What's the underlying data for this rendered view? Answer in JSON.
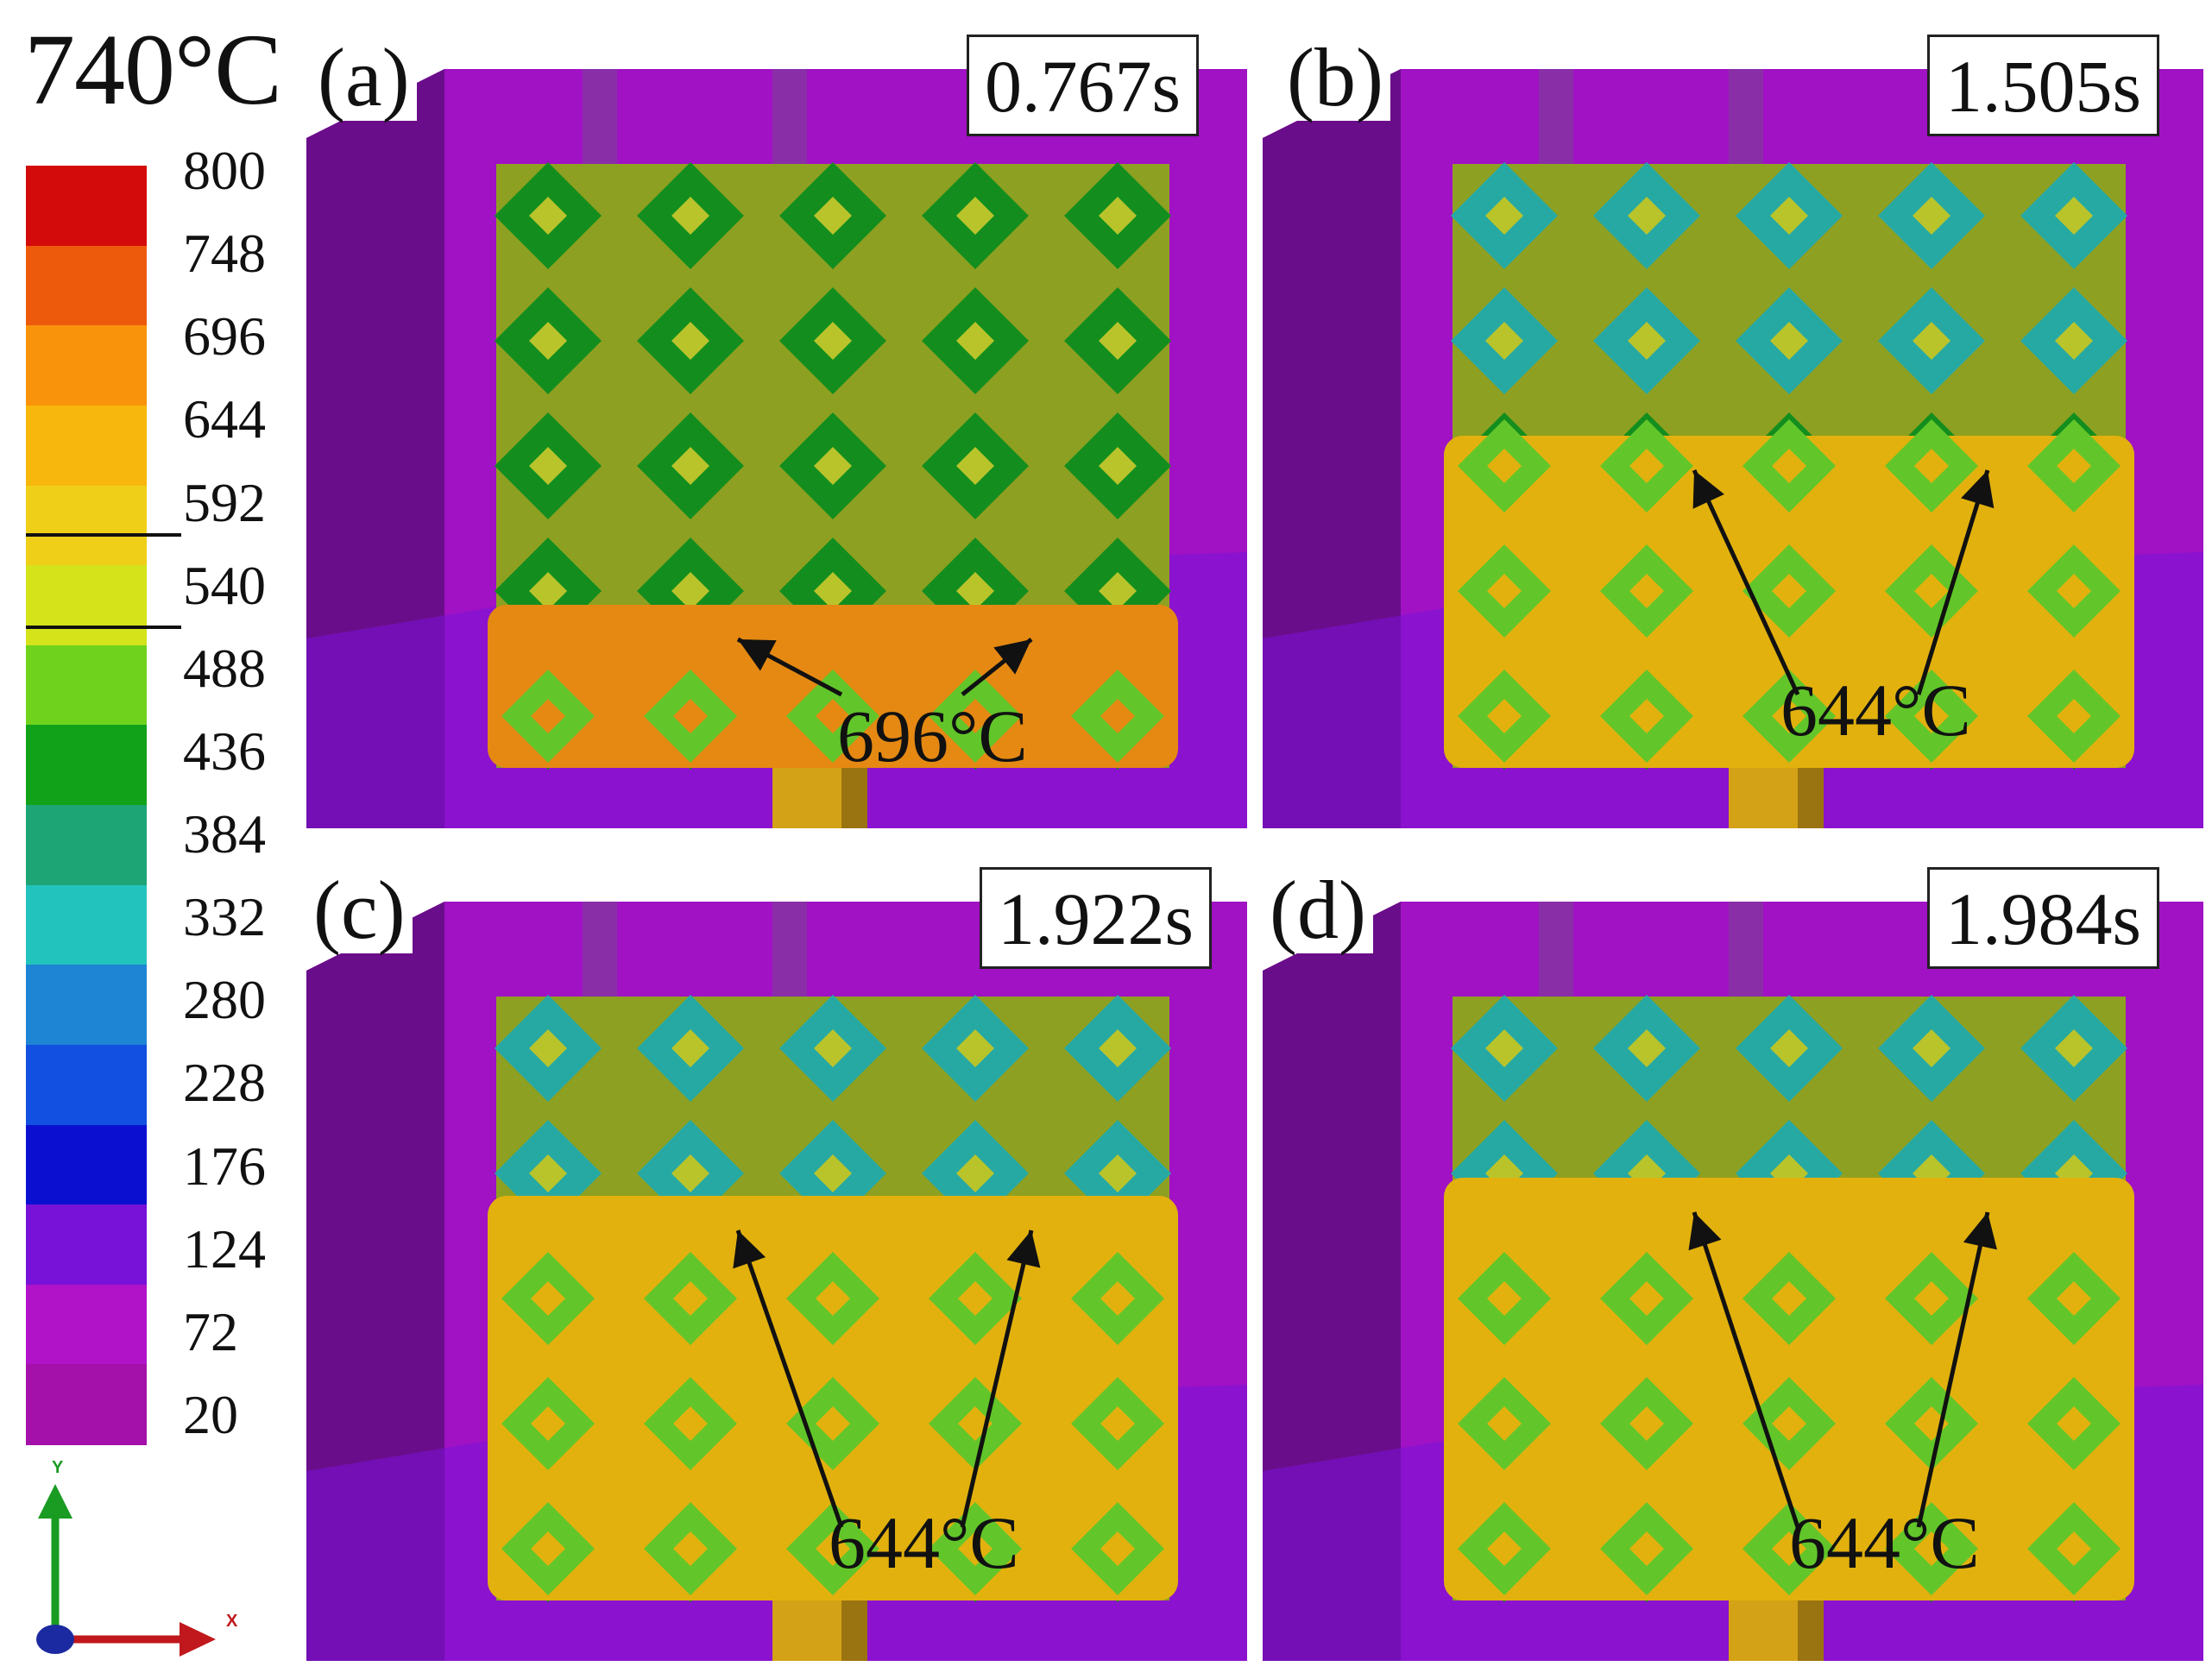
{
  "scale": {
    "title": "740°C",
    "ticks": [
      "800",
      "748",
      "696",
      "644",
      "592",
      "540",
      "488",
      "436",
      "384",
      "332",
      "280",
      "228",
      "176",
      "124",
      "72",
      "20"
    ],
    "colors": [
      "#d40b0b",
      "#ee5a0c",
      "#f9930b",
      "#f8b70c",
      "#f0cf19",
      "#d4e31a",
      "#6fd31e",
      "#12a21a",
      "#1da575",
      "#23c3bd",
      "#1e84d4",
      "#1150e0",
      "#0b10d0",
      "#7812d8",
      "#b013c8",
      "#a310aa"
    ]
  },
  "axes": {
    "y": "Y",
    "x": "X"
  },
  "panels": [
    {
      "letter": "(a)",
      "time": "0.767s",
      "temp_label": "696°C",
      "fill_level": 0.27,
      "fill_color": "#e58913"
    },
    {
      "letter": "(b)",
      "time": "1.505s",
      "temp_label": "644°C",
      "fill_level": 0.55,
      "fill_color": "#e2b10e"
    },
    {
      "letter": "(c)",
      "time": "1.922s",
      "temp_label": "644°C",
      "fill_level": 0.67,
      "fill_color": "#e2b10e"
    },
    {
      "letter": "(d)",
      "time": "1.984s",
      "temp_label": "644°C",
      "fill_level": 0.7,
      "fill_color": "#e2b10e"
    }
  ]
}
